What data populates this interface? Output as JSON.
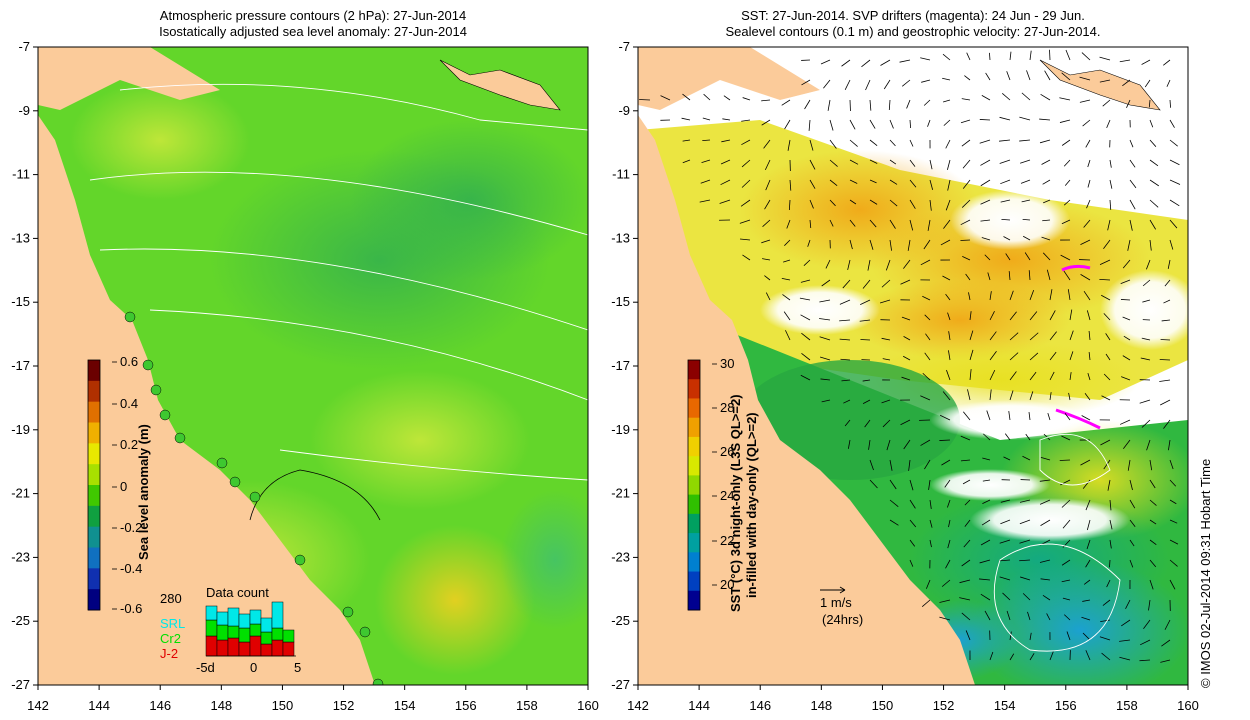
{
  "left_panel": {
    "title_line1": "Atmospheric pressure contours (2 hPa): 27-Jun-2014",
    "title_line2": "Isostatically adjusted sea level anomaly: 27-Jun-2014",
    "colorbar": {
      "label": "Sea level anomaly (m)",
      "ticks": [
        "0.6",
        "0.4",
        "0.2",
        "0",
        "-0.2",
        "-0.4",
        "-0.6"
      ],
      "colors": [
        "#6b0000",
        "#b03000",
        "#e07000",
        "#f0b000",
        "#e8e800",
        "#a8e000",
        "#40c800",
        "#10a040",
        "#109090",
        "#1070c0",
        "#1030b0",
        "#000080"
      ]
    },
    "data_count": {
      "label": "Data count",
      "total": "280",
      "legend": [
        {
          "name": "SRL",
          "color": "#00e8e8"
        },
        {
          "name": "Cr2",
          "color": "#00e000"
        },
        {
          "name": "J-2",
          "color": "#e00000"
        }
      ],
      "x_ticks": [
        "-5d",
        "0",
        "5"
      ]
    }
  },
  "right_panel": {
    "title_line1": "SST: 27-Jun-2014. SVP drifters (magenta): 24 Jun - 29 Jun.",
    "title_line2": "Sealevel contours (0.1 m) and geostrophic velocity: 27-Jun-2014.",
    "colorbar": {
      "label_line1": "SST (°C) 3d night-only (L3S QL>=2)",
      "label_line2": "in-filled with day-only (QL>=2)",
      "ticks": [
        "30",
        "28",
        "26",
        "24",
        "22",
        "20"
      ],
      "colors": [
        "#8b0000",
        "#c83000",
        "#e86800",
        "#f0a000",
        "#f0d000",
        "#d8e800",
        "#90d800",
        "#30c000",
        "#00a060",
        "#00a0a0",
        "#0080d0",
        "#0040c0",
        "#000090"
      ]
    },
    "scale_arrow": {
      "speed": "1 m/s",
      "period": "(24hrs)"
    }
  },
  "axes": {
    "x_ticks": [
      "142",
      "144",
      "146",
      "148",
      "150",
      "152",
      "154",
      "156",
      "158",
      "160"
    ],
    "y_ticks": [
      "-7",
      "-9",
      "-11",
      "-13",
      "-15",
      "-17",
      "-19",
      "-21",
      "-23",
      "-25",
      "-27"
    ]
  },
  "colors": {
    "land": "#fbcb9a",
    "sea_green": "#63d62a",
    "sea_light": "#8be23a",
    "sst_yellow": "#e8e21a",
    "sst_orange": "#f0b020",
    "drifter": "#ff00ff"
  },
  "credit": "© IMOS 02-Jul-2014 09:31 Hobart Time"
}
